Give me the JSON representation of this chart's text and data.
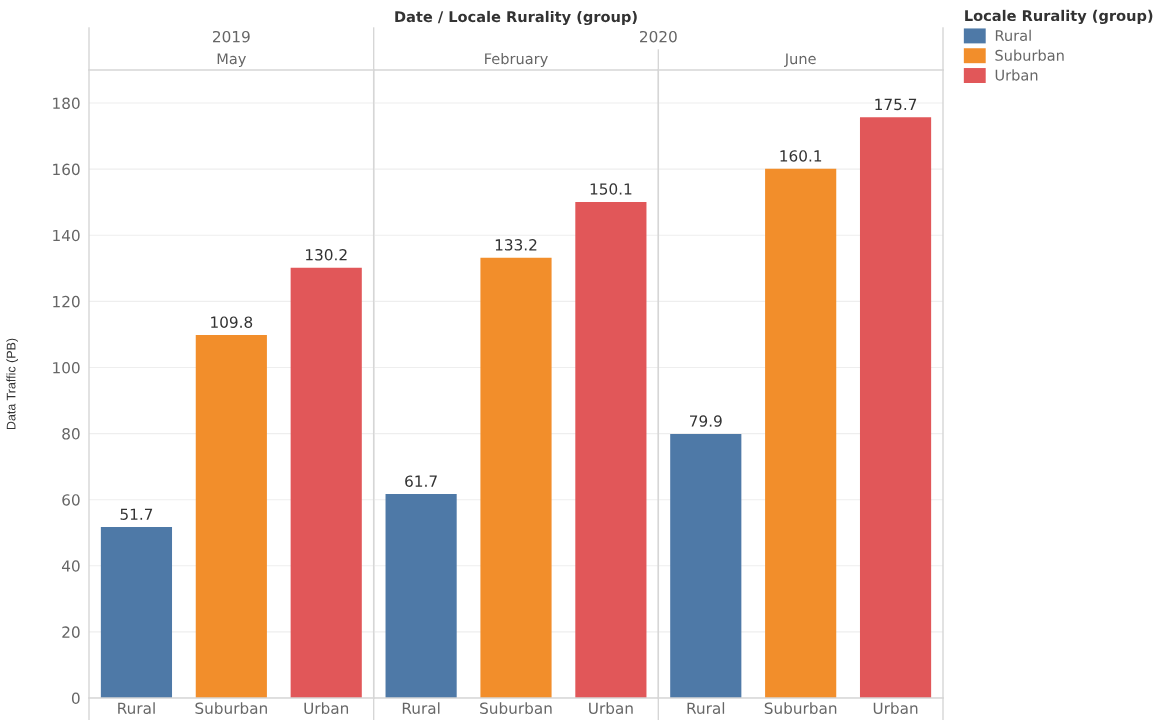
{
  "chart_data": {
    "type": "bar",
    "xlabel": "Date / Locale Rurality (group)",
    "ylabel": "Data Traffic (PB)",
    "annotations": [
      "2019",
      "2020",
      "May",
      "February",
      "June"
    ],
    "categories": [
      "Rural",
      "Suburban",
      "Urban",
      "Rural",
      "Suburban",
      "Urban",
      "Rural",
      "Suburban",
      "Urban"
    ],
    "series": [
      {
        "name": "Rural",
        "color": "#4e79a7",
        "values": [
          51.7,
          null,
          null,
          61.7,
          null,
          null,
          79.9,
          null,
          null
        ]
      },
      {
        "name": "Suburban",
        "color": "#f28e2b",
        "values": [
          null,
          109.8,
          null,
          null,
          133.2,
          null,
          null,
          160.1,
          null
        ]
      },
      {
        "name": "Urban",
        "color": "#e15759",
        "values": [
          null,
          null,
          130.2,
          null,
          null,
          150.1,
          null,
          null,
          175.7
        ]
      }
    ],
    "ylim": [
      0,
      190
    ],
    "yticks": [
      0,
      20,
      40,
      60,
      80,
      100,
      120,
      140,
      160,
      180
    ],
    "grid": "y",
    "data_labels": true,
    "legend": "top right",
    "legend_title": "Locale Rurality (group)"
  }
}
